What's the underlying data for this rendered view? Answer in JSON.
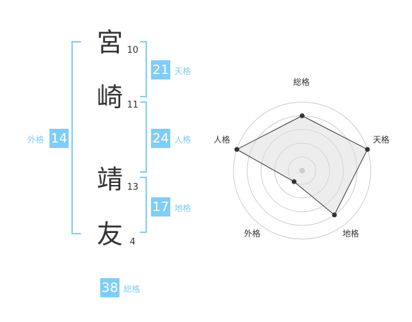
{
  "name": {
    "characters": [
      {
        "char": "宮",
        "strokes": "10"
      },
      {
        "char": "崎",
        "strokes": "11"
      },
      {
        "char": "靖",
        "strokes": "13"
      },
      {
        "char": "友",
        "strokes": "4"
      }
    ]
  },
  "fortunes": {
    "tenkaku": {
      "value": "21",
      "label": "天格"
    },
    "jinkaku": {
      "value": "24",
      "label": "人格"
    },
    "chikaku": {
      "value": "17",
      "label": "地格"
    },
    "gaikaku": {
      "value": "14",
      "label": "外格"
    },
    "soukaku": {
      "value": "38",
      "label": "総格"
    }
  },
  "accent_color": "#7fcdf8",
  "chart_data": {
    "type": "radar",
    "axes": [
      "総格",
      "天格",
      "地格",
      "外格",
      "人格"
    ],
    "values": [
      4,
      5,
      4,
      1,
      5
    ],
    "max": 5,
    "rings": 5
  }
}
